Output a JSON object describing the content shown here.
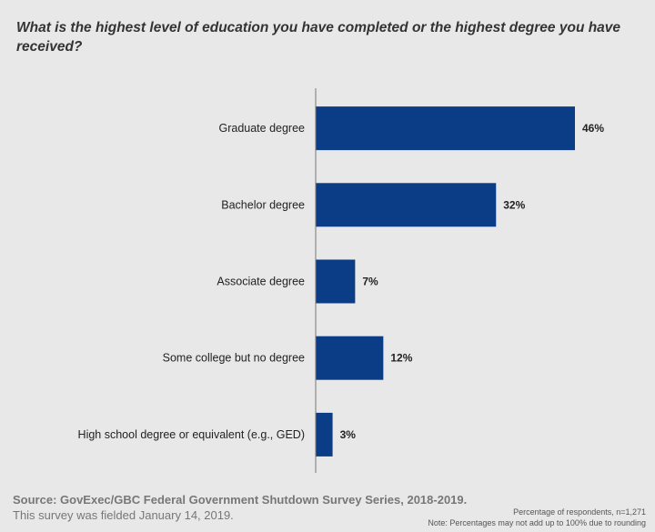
{
  "chart_data": {
    "type": "bar",
    "orientation": "horizontal",
    "title": "What is the highest level of education you have completed or the highest degree you have received?",
    "categories": [
      "Graduate degree",
      "Bachelor degree",
      "Associate degree",
      "Some college but no degree",
      "High school degree or equivalent (e.g., GED)"
    ],
    "values": [
      46,
      32,
      7,
      12,
      3
    ],
    "labels": [
      "46%",
      "32%",
      "7%",
      "12%",
      "3%"
    ],
    "xlim": [
      0,
      50
    ],
    "bar_color": "#0b3d86",
    "grid": false
  },
  "footer": {
    "source": "Source: GovExec/GBC Federal Government Shutdown Survey Series, 2018-2019.",
    "fielded": "This survey was fielded January 14, 2019.",
    "respondents": "Percentage of respondents, n=1,271",
    "note": "Note: Percentages may not add up to 100% due to rounding"
  }
}
